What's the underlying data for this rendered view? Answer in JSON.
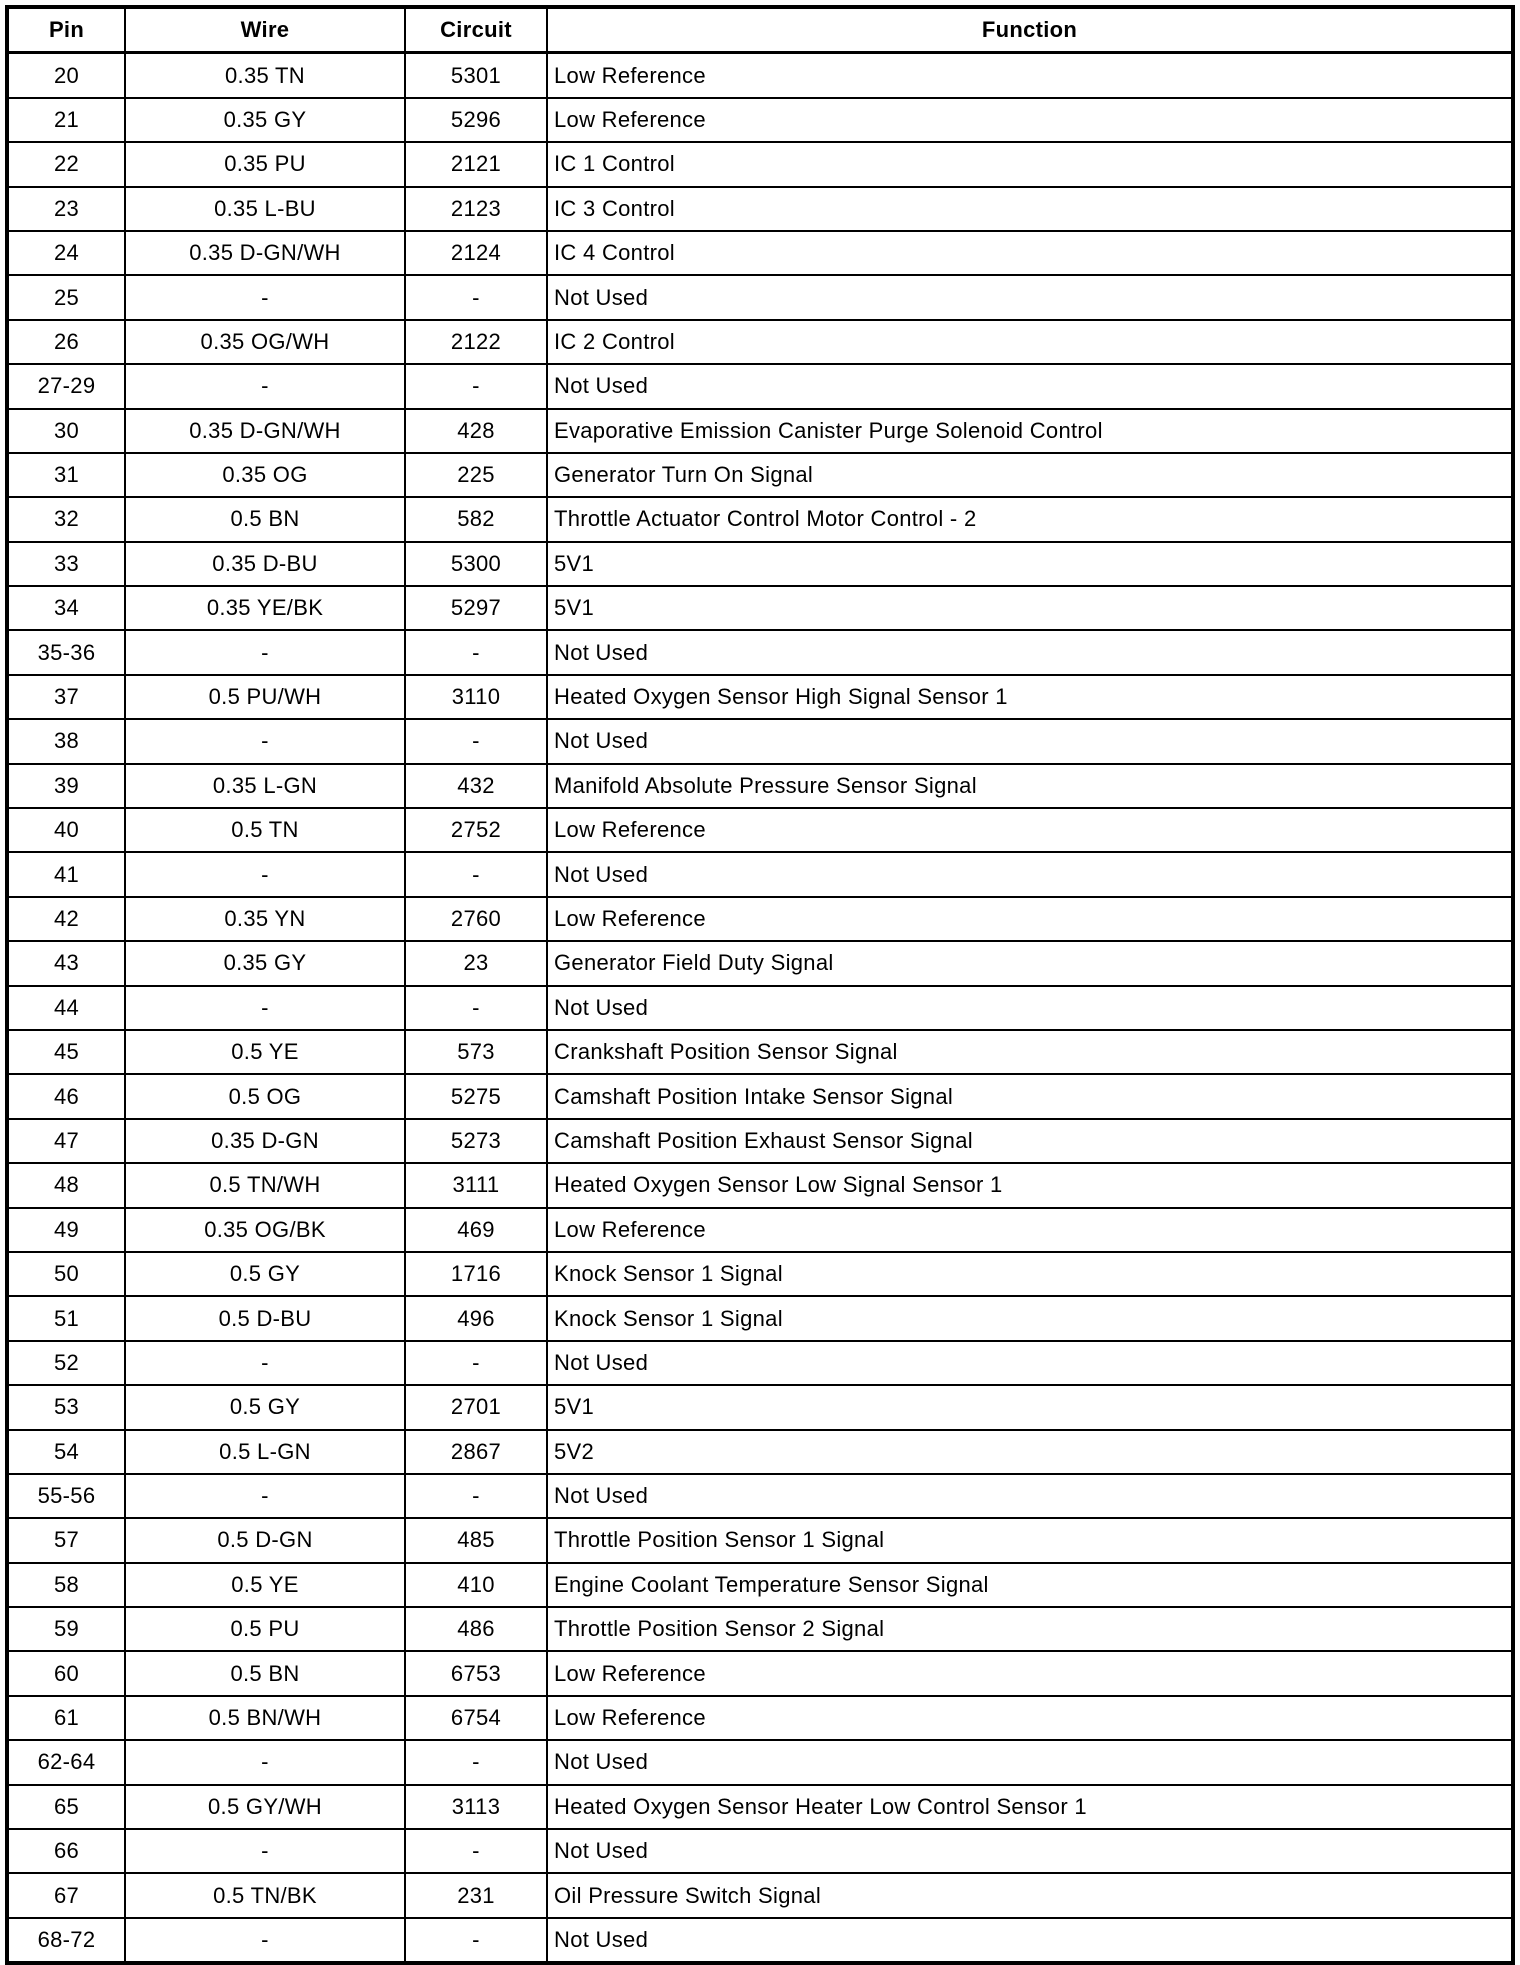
{
  "table": {
    "headers": [
      "Pin",
      "Wire",
      "Circuit",
      "Function"
    ],
    "rows": [
      [
        "20",
        "0.35 TN",
        "5301",
        "Low Reference"
      ],
      [
        "21",
        "0.35 GY",
        "5296",
        "Low Reference"
      ],
      [
        "22",
        "0.35 PU",
        "2121",
        "IC 1 Control"
      ],
      [
        "23",
        "0.35 L-BU",
        "2123",
        "IC 3 Control"
      ],
      [
        "24",
        "0.35 D-GN/WH",
        "2124",
        "IC 4 Control"
      ],
      [
        "25",
        "-",
        "-",
        "Not Used"
      ],
      [
        "26",
        "0.35 OG/WH",
        "2122",
        "IC 2 Control"
      ],
      [
        "27-29",
        "-",
        "-",
        "Not Used"
      ],
      [
        "30",
        "0.35 D-GN/WH",
        "428",
        "Evaporative Emission Canister Purge Solenoid Control"
      ],
      [
        "31",
        "0.35 OG",
        "225",
        "Generator Turn On Signal"
      ],
      [
        "32",
        "0.5 BN",
        "582",
        "Throttle Actuator Control Motor Control - 2"
      ],
      [
        "33",
        "0.35 D-BU",
        "5300",
        "5V1"
      ],
      [
        "34",
        "0.35 YE/BK",
        "5297",
        "5V1"
      ],
      [
        "35-36",
        "-",
        "-",
        "Not Used"
      ],
      [
        "37",
        "0.5 PU/WH",
        "3110",
        "Heated Oxygen Sensor High Signal Sensor 1"
      ],
      [
        "38",
        "-",
        "-",
        "Not Used"
      ],
      [
        "39",
        "0.35 L-GN",
        "432",
        "Manifold Absolute Pressure Sensor Signal"
      ],
      [
        "40",
        "0.5 TN",
        "2752",
        "Low Reference"
      ],
      [
        "41",
        "-",
        "-",
        "Not Used"
      ],
      [
        "42",
        "0.35 YN",
        "2760",
        "Low Reference"
      ],
      [
        "43",
        "0.35 GY",
        "23",
        "Generator Field Duty Signal"
      ],
      [
        "44",
        "-",
        "-",
        "Not Used"
      ],
      [
        "45",
        "0.5 YE",
        "573",
        "Crankshaft Position Sensor Signal"
      ],
      [
        "46",
        "0.5 OG",
        "5275",
        "Camshaft Position Intake Sensor Signal"
      ],
      [
        "47",
        "0.35 D-GN",
        "5273",
        "Camshaft Position Exhaust Sensor Signal"
      ],
      [
        "48",
        "0.5 TN/WH",
        "3111",
        "Heated Oxygen Sensor Low Signal Sensor 1"
      ],
      [
        "49",
        "0.35 OG/BK",
        "469",
        "Low Reference"
      ],
      [
        "50",
        "0.5 GY",
        "1716",
        "Knock Sensor 1 Signal"
      ],
      [
        "51",
        "0.5 D-BU",
        "496",
        "Knock Sensor 1 Signal"
      ],
      [
        "52",
        "-",
        "-",
        "Not Used"
      ],
      [
        "53",
        "0.5 GY",
        "2701",
        "5V1"
      ],
      [
        "54",
        "0.5 L-GN",
        "2867",
        "5V2"
      ],
      [
        "55-56",
        "-",
        "-",
        "Not Used"
      ],
      [
        "57",
        "0.5 D-GN",
        "485",
        "Throttle Position Sensor 1 Signal"
      ],
      [
        "58",
        "0.5 YE",
        "410",
        "Engine Coolant Temperature Sensor Signal"
      ],
      [
        "59",
        "0.5 PU",
        "486",
        "Throttle Position Sensor 2 Signal"
      ],
      [
        "60",
        "0.5 BN",
        "6753",
        "Low Reference"
      ],
      [
        "61",
        "0.5 BN/WH",
        "6754",
        "Low Reference"
      ],
      [
        "62-64",
        "-",
        "-",
        "Not Used"
      ],
      [
        "65",
        "0.5 GY/WH",
        "3113",
        "Heated Oxygen Sensor Heater Low Control Sensor 1"
      ],
      [
        "66",
        "-",
        "-",
        "Not Used"
      ],
      [
        "67",
        "0.5 TN/BK",
        "231",
        "Oil Pressure Switch Signal"
      ],
      [
        "68-72",
        "-",
        "-",
        "Not Used"
      ]
    ]
  }
}
